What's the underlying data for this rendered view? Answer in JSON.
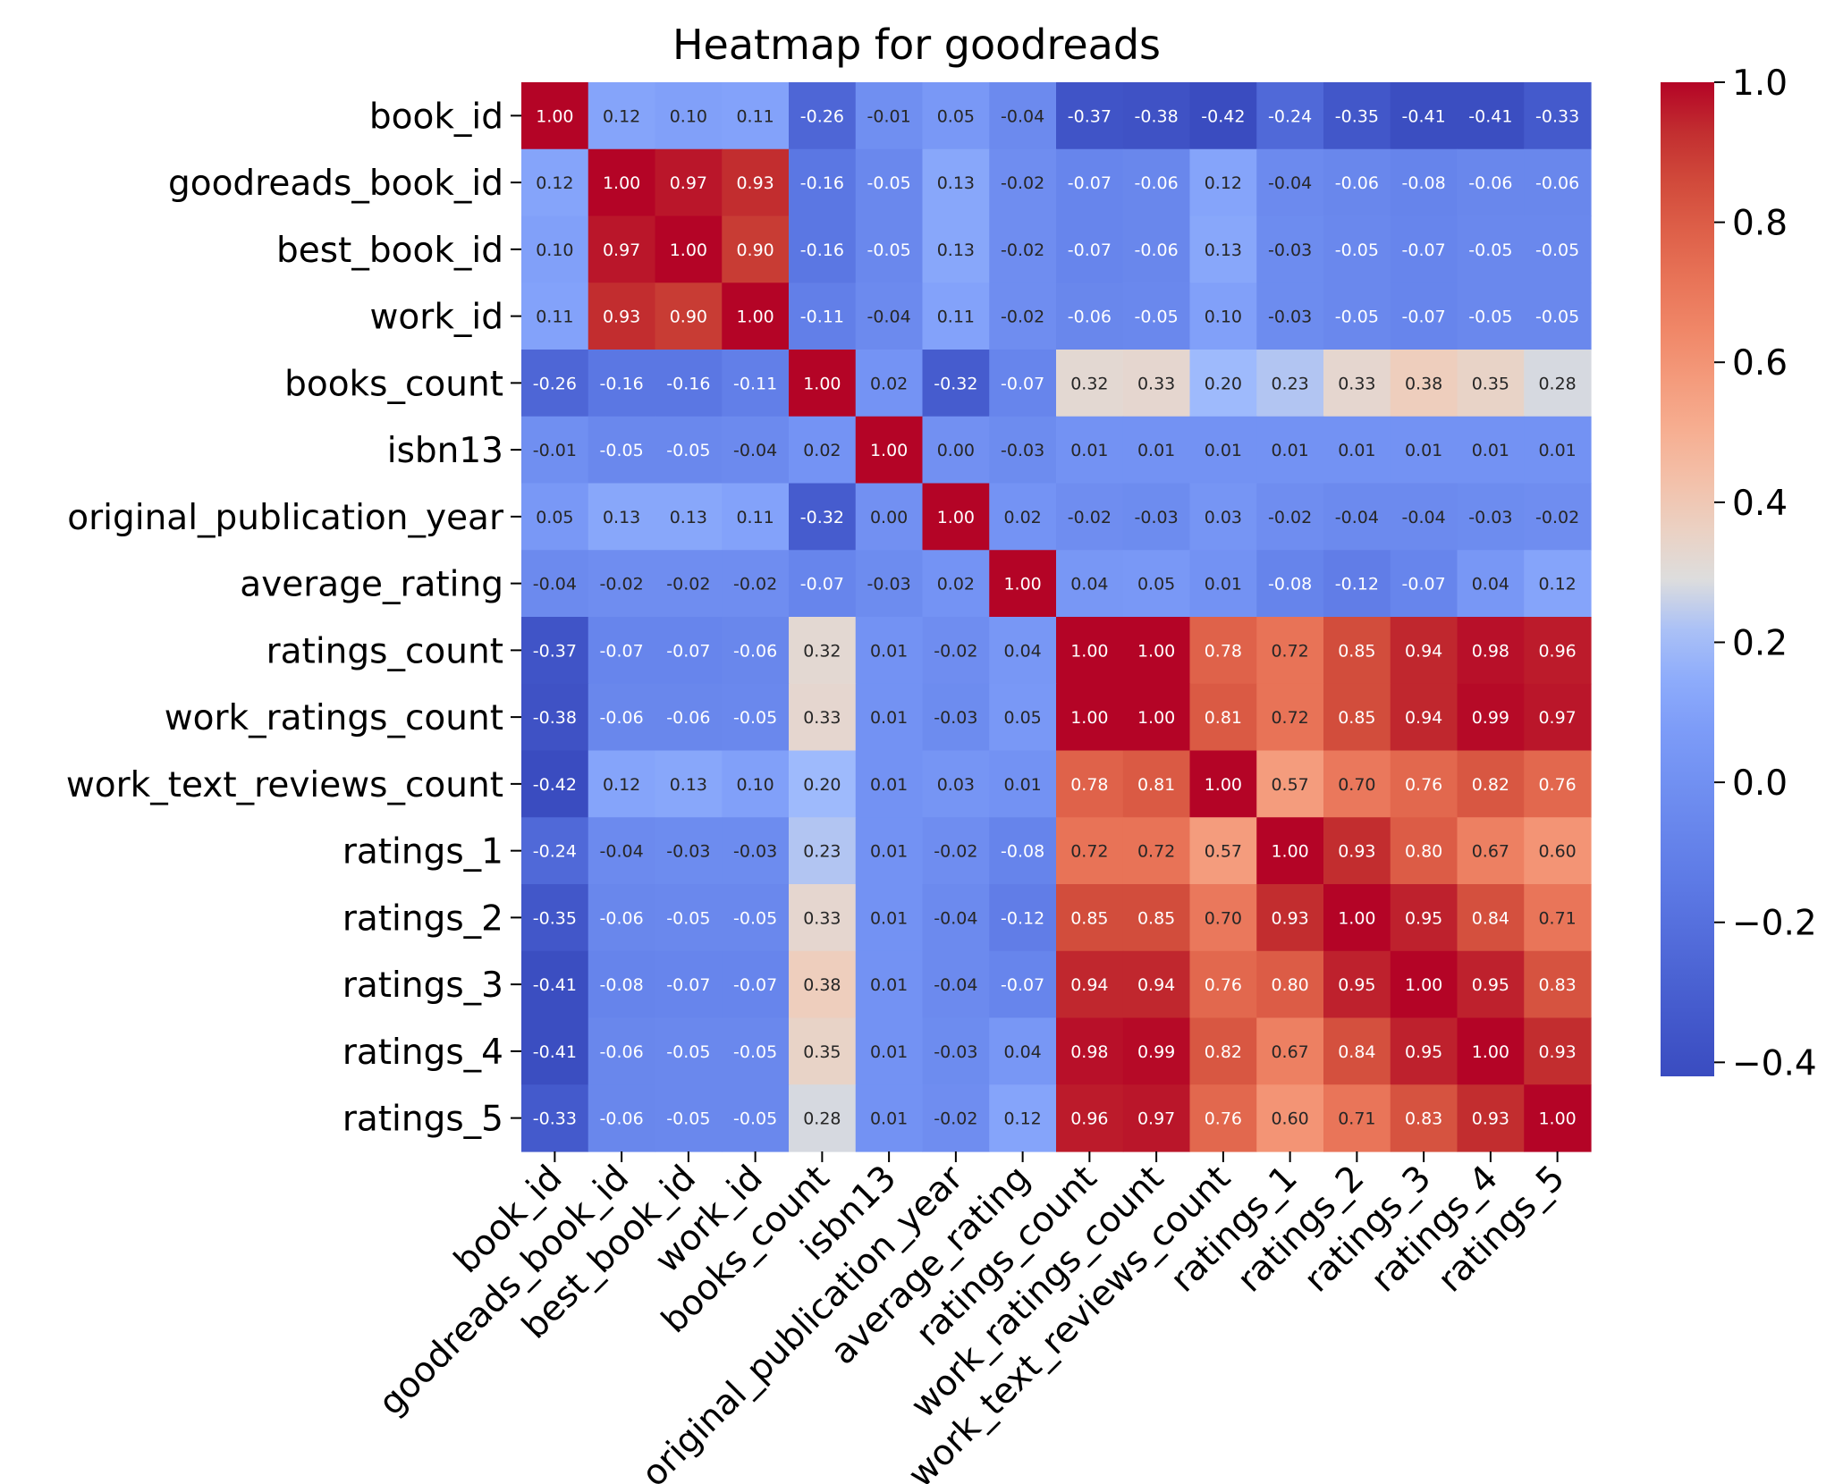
{
  "chart_data": {
    "type": "heatmap",
    "title": "Heatmap for goodreads",
    "colormap": "coolwarm",
    "colorbar": {
      "vmin": -0.42,
      "vmax": 1.0,
      "ticks": [
        -0.4,
        -0.2,
        0.0,
        0.2,
        0.4,
        0.6,
        0.8,
        1.0
      ],
      "tick_labels": [
        "−0.4",
        "−0.2",
        "0.0",
        "0.2",
        "0.4",
        "0.6",
        "0.8",
        "1.0"
      ]
    },
    "labels": [
      "book_id",
      "goodreads_book_id",
      "best_book_id",
      "work_id",
      "books_count",
      "isbn13",
      "original_publication_year",
      "average_rating",
      "ratings_count",
      "work_ratings_count",
      "work_text_reviews_count",
      "ratings_1",
      "ratings_2",
      "ratings_3",
      "ratings_4",
      "ratings_5"
    ],
    "matrix": [
      [
        1.0,
        0.12,
        0.1,
        0.11,
        -0.26,
        -0.01,
        0.05,
        -0.04,
        -0.37,
        -0.38,
        -0.42,
        -0.24,
        -0.35,
        -0.41,
        -0.41,
        -0.33
      ],
      [
        0.12,
        1.0,
        0.97,
        0.93,
        -0.16,
        -0.05,
        0.13,
        -0.02,
        -0.07,
        -0.06,
        0.12,
        -0.04,
        -0.06,
        -0.08,
        -0.06,
        -0.06
      ],
      [
        0.1,
        0.97,
        1.0,
        0.9,
        -0.16,
        -0.05,
        0.13,
        -0.02,
        -0.07,
        -0.06,
        0.13,
        -0.03,
        -0.05,
        -0.07,
        -0.05,
        -0.05
      ],
      [
        0.11,
        0.93,
        0.9,
        1.0,
        -0.11,
        -0.04,
        0.11,
        -0.02,
        -0.06,
        -0.05,
        0.1,
        -0.03,
        -0.05,
        -0.07,
        -0.05,
        -0.05
      ],
      [
        -0.26,
        -0.16,
        -0.16,
        -0.11,
        1.0,
        0.02,
        -0.32,
        -0.07,
        0.32,
        0.33,
        0.2,
        0.23,
        0.33,
        0.38,
        0.35,
        0.28
      ],
      [
        -0.01,
        -0.05,
        -0.05,
        -0.04,
        0.02,
        1.0,
        -0.0,
        -0.03,
        0.01,
        0.01,
        0.01,
        0.01,
        0.01,
        0.01,
        0.01,
        0.01
      ],
      [
        0.05,
        0.13,
        0.13,
        0.11,
        -0.32,
        -0.0,
        1.0,
        0.02,
        -0.02,
        -0.03,
        0.03,
        -0.02,
        -0.04,
        -0.04,
        -0.03,
        -0.02
      ],
      [
        -0.04,
        -0.02,
        -0.02,
        -0.02,
        -0.07,
        -0.03,
        0.02,
        1.0,
        0.04,
        0.05,
        0.01,
        -0.08,
        -0.12,
        -0.07,
        0.04,
        0.12
      ],
      [
        -0.37,
        -0.07,
        -0.07,
        -0.06,
        0.32,
        0.01,
        -0.02,
        0.04,
        1.0,
        1.0,
        0.78,
        0.72,
        0.85,
        0.94,
        0.98,
        0.96
      ],
      [
        -0.38,
        -0.06,
        -0.06,
        -0.05,
        0.33,
        0.01,
        -0.03,
        0.05,
        1.0,
        1.0,
        0.81,
        0.72,
        0.85,
        0.94,
        0.99,
        0.97
      ],
      [
        -0.42,
        0.12,
        0.13,
        0.1,
        0.2,
        0.01,
        0.03,
        0.01,
        0.78,
        0.81,
        1.0,
        0.57,
        0.7,
        0.76,
        0.82,
        0.76
      ],
      [
        -0.24,
        -0.04,
        -0.03,
        -0.03,
        0.23,
        0.01,
        -0.02,
        -0.08,
        0.72,
        0.72,
        0.57,
        1.0,
        0.93,
        0.8,
        0.67,
        0.6
      ],
      [
        -0.35,
        -0.06,
        -0.05,
        -0.05,
        0.33,
        0.01,
        -0.04,
        -0.12,
        0.85,
        0.85,
        0.7,
        0.93,
        1.0,
        0.95,
        0.84,
        0.71
      ],
      [
        -0.41,
        -0.08,
        -0.07,
        -0.07,
        0.38,
        0.01,
        -0.04,
        -0.07,
        0.94,
        0.94,
        0.76,
        0.8,
        0.95,
        1.0,
        0.95,
        0.83
      ],
      [
        -0.41,
        -0.06,
        -0.05,
        -0.05,
        0.35,
        0.01,
        -0.03,
        0.04,
        0.98,
        0.99,
        0.82,
        0.67,
        0.84,
        0.95,
        1.0,
        0.93
      ],
      [
        -0.33,
        -0.06,
        -0.05,
        -0.05,
        0.28,
        0.01,
        -0.02,
        0.12,
        0.96,
        0.97,
        0.76,
        0.6,
        0.71,
        0.83,
        0.93,
        1.0
      ]
    ],
    "value_format": "0.00"
  }
}
